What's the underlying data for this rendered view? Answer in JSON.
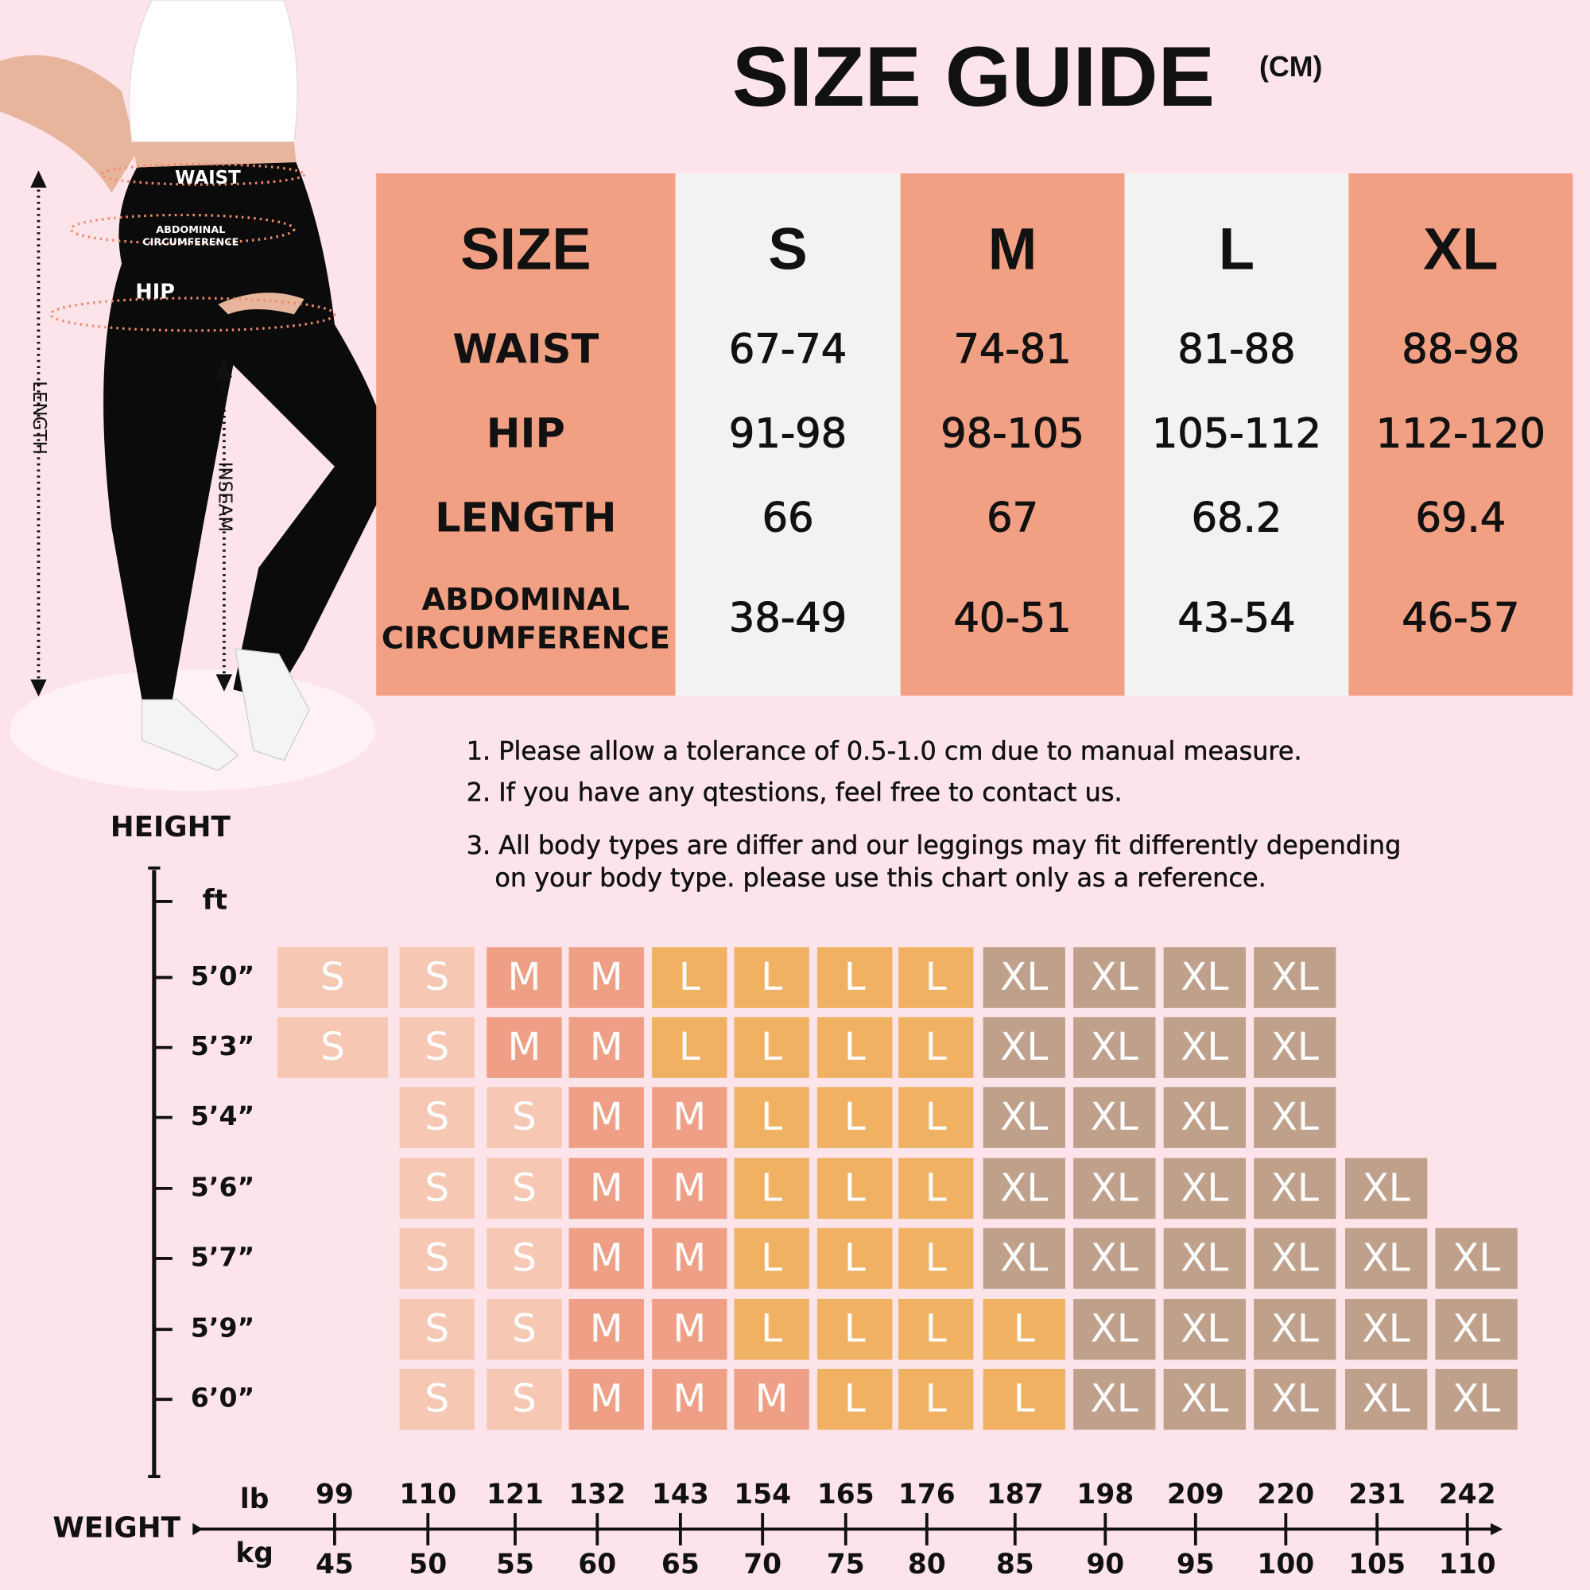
{
  "title": "SIZE GUIDE",
  "unit": "(CM)",
  "figure_labels": {
    "waist": "WAIST",
    "abdominal": [
      "ABDOMINAL",
      "CIRCUMFERENCE"
    ],
    "hip": "HIP",
    "length": "LENGTH",
    "inseam": "INSEAM"
  },
  "table": {
    "header": [
      "SIZE",
      "S",
      "M",
      "L",
      "XL"
    ],
    "rows": [
      [
        [
          "WAIST"
        ],
        "67-74",
        "74-81",
        "81-88",
        "88-98"
      ],
      [
        [
          "HIP"
        ],
        "91-98",
        "98-105",
        "105-112",
        "112-120"
      ],
      [
        [
          "LENGTH"
        ],
        "66",
        "67",
        "68.2",
        "69.4"
      ],
      [
        [
          "ABDOMINAL",
          "CIRCUMFERENCE"
        ],
        "38-49",
        "40-51",
        "43-54",
        "46-57"
      ]
    ]
  },
  "notes": [
    [
      "1. Please allow a tolerance of 0.5-1.0 cm due to manual measure."
    ],
    [
      "2. If you have any qtestions, feel free to contact us."
    ],
    [
      "3. All body types are differ and our leggings may fit differently depending",
      "on your body type. please use this chart only as a reference."
    ]
  ],
  "height_chart": {
    "height_label": "HEIGHT",
    "height_unit": "ft",
    "weight_label": "WEIGHT",
    "lb_label": "lb",
    "kg_label": "kg",
    "heights": [
      "5’0”",
      "5’3”",
      "5’4”",
      "5’6”",
      "5’7”",
      "5’9”",
      "6’0”"
    ],
    "lb_ticks": [
      99,
      110,
      121,
      132,
      143,
      154,
      165,
      176,
      187,
      198,
      209,
      220,
      231,
      242
    ],
    "kg_ticks": [
      45,
      50,
      55,
      60,
      65,
      70,
      75,
      80,
      85,
      90,
      95,
      100,
      105,
      110
    ],
    "size_colors": {
      "S": "#f6c8b4",
      "M": "#ef9f85",
      "L": "#f0b163",
      "XL": "#bfa18b"
    },
    "rows": [
      [
        "S",
        "S",
        "M",
        "M",
        "L",
        "L",
        "L",
        "L",
        "XL",
        "XL",
        "XL",
        "XL",
        null,
        null
      ],
      [
        "S",
        "S",
        "M",
        "M",
        "L",
        "L",
        "L",
        "L",
        "XL",
        "XL",
        "XL",
        "XL",
        null,
        null
      ],
      [
        null,
        "S",
        "S",
        "M",
        "M",
        "L",
        "L",
        "L",
        "XL",
        "XL",
        "XL",
        "XL",
        null,
        null
      ],
      [
        null,
        "S",
        "S",
        "M",
        "M",
        "L",
        "L",
        "L",
        "XL",
        "XL",
        "XL",
        "XL",
        "XL",
        null
      ],
      [
        null,
        "S",
        "S",
        "M",
        "M",
        "L",
        "L",
        "L",
        "XL",
        "XL",
        "XL",
        "XL",
        "XL",
        "XL"
      ],
      [
        null,
        "S",
        "S",
        "M",
        "M",
        "L",
        "L",
        "L",
        "L",
        "XL",
        "XL",
        "XL",
        "XL",
        "XL"
      ],
      [
        null,
        "S",
        "S",
        "M",
        "M",
        "M",
        "L",
        "L",
        "L",
        "XL",
        "XL",
        "XL",
        "XL",
        "XL"
      ]
    ]
  }
}
